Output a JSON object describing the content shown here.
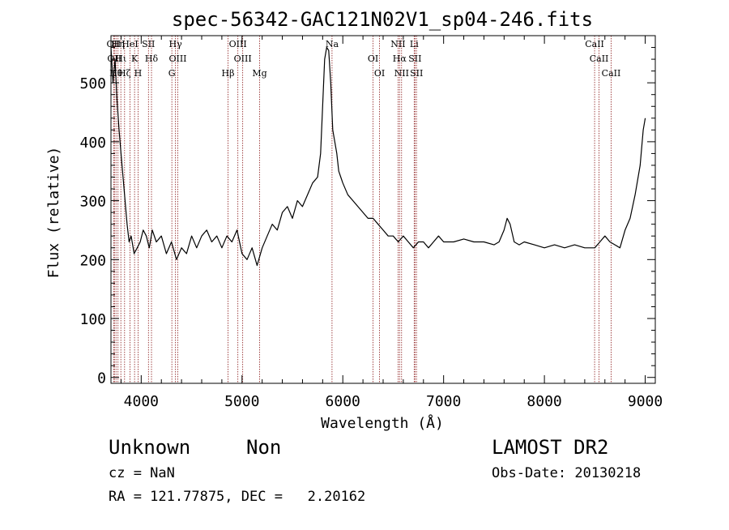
{
  "chart_data": {
    "type": "line",
    "title": "spec-56342-GAC121N02V1_sp04-246.fits",
    "xlabel": "Wavelength (Å)",
    "ylabel": "Flux (relative)",
    "xlim": [
      3700,
      9100
    ],
    "ylim": [
      -10,
      580
    ],
    "xticks": [
      4000,
      5000,
      6000,
      7000,
      8000,
      9000
    ],
    "yticks": [
      0,
      100,
      200,
      300,
      400,
      500
    ],
    "grid": false,
    "series": [
      {
        "x": [
          3700,
          3720,
          3740,
          3760,
          3780,
          3800,
          3820,
          3840,
          3860,
          3880,
          3900,
          3930,
          3960,
          3990,
          4020,
          4050,
          4080,
          4110,
          4150,
          4200,
          4250,
          4300,
          4350,
          4400,
          4450,
          4500,
          4550,
          4600,
          4650,
          4700,
          4750,
          4800,
          4850,
          4900,
          4950,
          5000,
          5050,
          5100,
          5150,
          5200,
          5250,
          5300,
          5350,
          5400,
          5450,
          5500,
          5550,
          5600,
          5650,
          5700,
          5750,
          5780,
          5800,
          5820,
          5840,
          5860,
          5880,
          5900,
          5920,
          5940,
          5960,
          5980,
          6000,
          6050,
          6100,
          6150,
          6200,
          6250,
          6300,
          6350,
          6400,
          6450,
          6500,
          6550,
          6600,
          6650,
          6700,
          6750,
          6800,
          6850,
          6900,
          6950,
          7000,
          7100,
          7200,
          7300,
          7400,
          7500,
          7550,
          7600,
          7630,
          7660,
          7700,
          7750,
          7800,
          7900,
          8000,
          8100,
          8200,
          8300,
          8400,
          8500,
          8550,
          8600,
          8650,
          8700,
          8750,
          8800,
          8850,
          8900,
          8950,
          8980,
          9000
        ],
        "y": [
          560,
          500,
          540,
          470,
          420,
          380,
          340,
          300,
          260,
          230,
          240,
          210,
          220,
          230,
          250,
          240,
          220,
          250,
          230,
          240,
          210,
          230,
          200,
          220,
          210,
          240,
          220,
          240,
          250,
          230,
          240,
          220,
          240,
          230,
          250,
          210,
          200,
          220,
          190,
          220,
          240,
          260,
          250,
          280,
          290,
          270,
          300,
          290,
          310,
          330,
          340,
          380,
          460,
          540,
          560,
          555,
          500,
          420,
          400,
          380,
          350,
          340,
          330,
          310,
          300,
          290,
          280,
          270,
          270,
          260,
          250,
          240,
          240,
          230,
          240,
          230,
          220,
          230,
          230,
          220,
          230,
          240,
          230,
          230,
          235,
          230,
          230,
          225,
          230,
          250,
          270,
          260,
          230,
          225,
          230,
          225,
          220,
          225,
          220,
          225,
          220,
          220,
          230,
          240,
          230,
          225,
          220,
          250,
          270,
          310,
          360,
          420,
          440
        ]
      }
    ],
    "lines": [
      {
        "x": 3727,
        "label": "OII",
        "row": 0
      },
      {
        "x": 3734,
        "label": "OII",
        "row": 1
      },
      {
        "x": 3750,
        "label": "Hθ",
        "row": 2
      },
      {
        "x": 3770,
        "label": "Hη",
        "row": 3
      },
      {
        "x": 3798,
        "label": "Hι",
        "row": 4
      },
      {
        "x": 3835,
        "label": "Hζ",
        "row": 5
      },
      {
        "x": 3889,
        "label": "HeI",
        "row": 6
      },
      {
        "x": 3934,
        "label": "K",
        "row": 7
      },
      {
        "x": 3969,
        "label": "H",
        "row": 8
      },
      {
        "x": 4072,
        "label": "SII",
        "row": 9
      },
      {
        "x": 4102,
        "label": "Hδ",
        "row": 10
      },
      {
        "x": 4304,
        "label": "G",
        "row": 11
      },
      {
        "x": 4340,
        "label": "Hγ",
        "row": 12
      },
      {
        "x": 4363,
        "label": "OIII",
        "row": 13
      },
      {
        "x": 4861,
        "label": "Hβ",
        "row": 14
      },
      {
        "x": 4959,
        "label": "OIII",
        "row": 15
      },
      {
        "x": 5007,
        "label": "OIII",
        "row": 16
      },
      {
        "x": 5175,
        "label": "Mg",
        "row": 17
      },
      {
        "x": 5893,
        "label": "Na",
        "row": 18
      },
      {
        "x": 6300,
        "label": "OI",
        "row": 19
      },
      {
        "x": 6364,
        "label": "OI",
        "row": 20
      },
      {
        "x": 6548,
        "label": "NII",
        "row": 21
      },
      {
        "x": 6563,
        "label": "Hα",
        "row": 22
      },
      {
        "x": 6583,
        "label": "NII",
        "row": 23
      },
      {
        "x": 6708,
        "label": "Li",
        "row": 24
      },
      {
        "x": 6716,
        "label": "SII",
        "row": 25
      },
      {
        "x": 6731,
        "label": "SII",
        "row": 26
      },
      {
        "x": 8498,
        "label": "CaII",
        "row": 27
      },
      {
        "x": 8542,
        "label": "CaII",
        "row": 28
      },
      {
        "x": 8662,
        "label": "CaII",
        "row": 29
      }
    ],
    "line_color": "#8b1a1a"
  },
  "info": {
    "class": "Unknown",
    "subclass": "Non",
    "survey": "LAMOST DR2",
    "cz": "cz = NaN",
    "obs_date": "Obs-Date: 20130218",
    "coords": "RA = 121.77875, DEC =   2.20162"
  }
}
